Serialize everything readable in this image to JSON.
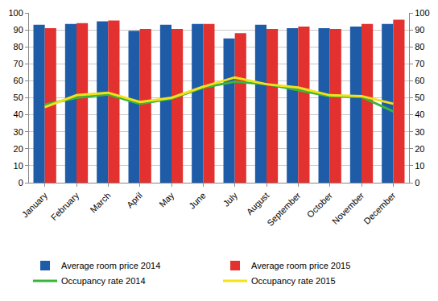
{
  "chart_data": {
    "type": "bar",
    "categories": [
      "January",
      "February",
      "March",
      "April",
      "May",
      "June",
      "July",
      "August",
      "September",
      "October",
      "November",
      "December"
    ],
    "series": [
      {
        "name": "Average room price 2014",
        "type": "bar",
        "color": "#1f5ca8",
        "values": [
          93,
          93.5,
          95,
          89.5,
          93,
          93.5,
          85,
          93,
          91,
          91,
          92,
          93.5
        ]
      },
      {
        "name": "Average room price 2015",
        "type": "bar",
        "color": "#e2312f",
        "values": [
          91,
          94,
          95.5,
          90.5,
          90.5,
          93.5,
          88,
          90.5,
          92,
          90.5,
          93.5,
          96
        ]
      },
      {
        "name": "Occupancy rate 2014",
        "type": "line",
        "axis": "y2",
        "color": "#3cb43c",
        "line_style": "solid",
        "values": [
          46,
          50,
          52,
          46.5,
          49.5,
          56,
          59.5,
          58,
          54.5,
          51,
          50.5,
          42
        ]
      },
      {
        "name": "Occupancy rate 2015",
        "type": "line",
        "axis": "y2",
        "color": "#f2e21c",
        "line_style": "solid",
        "values": [
          44.5,
          51.5,
          53,
          47.5,
          50,
          56.5,
          62,
          58,
          56,
          51.5,
          51,
          46.5
        ]
      }
    ],
    "ylim": [
      0,
      100
    ],
    "yticks": [
      0,
      10,
      20,
      30,
      40,
      50,
      60,
      70,
      80,
      90,
      100
    ],
    "y2lim": [
      0,
      100
    ],
    "y2ticks": [
      0,
      10,
      20,
      30,
      40,
      50,
      60,
      70,
      80,
      90,
      100
    ],
    "grid": true,
    "legend": "bottom"
  }
}
